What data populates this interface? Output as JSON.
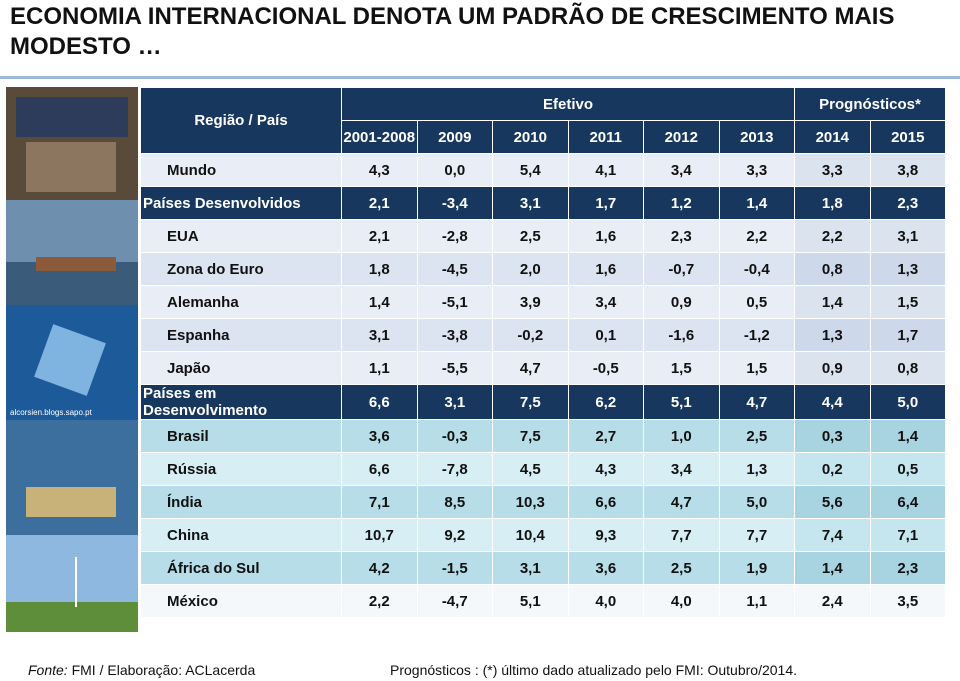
{
  "title": "ECONOMIA INTERNACIONAL DENOTA UM PADRÃO DE CRESCIMENTO MAIS MODESTO …",
  "images": {
    "watermark": "alcorsien.blogs.sapo.pt"
  },
  "table": {
    "region_header": "Região / País",
    "groups": [
      "Efetivo",
      "Prognósticos*"
    ],
    "columns": [
      "2001-2008",
      "2009",
      "2010",
      "2011",
      "2012",
      "2013",
      "2014",
      "2015"
    ],
    "rows": [
      [
        "Mundo",
        "4,3",
        "0,0",
        "5,4",
        "4,1",
        "3,4",
        "3,3",
        "3,3",
        "3,8"
      ],
      [
        "Países Desenvolvidos",
        "2,1",
        "-3,4",
        "3,1",
        "1,7",
        "1,2",
        "1,4",
        "1,8",
        "2,3"
      ],
      [
        "EUA",
        "2,1",
        "-2,8",
        "2,5",
        "1,6",
        "2,3",
        "2,2",
        "2,2",
        "3,1"
      ],
      [
        "Zona do Euro",
        "1,8",
        "-4,5",
        "2,0",
        "1,6",
        "-0,7",
        "-0,4",
        "0,8",
        "1,3"
      ],
      [
        "Alemanha",
        "1,4",
        "-5,1",
        "3,9",
        "3,4",
        "0,9",
        "0,5",
        "1,4",
        "1,5"
      ],
      [
        "Espanha",
        "3,1",
        "-3,8",
        "-0,2",
        "0,1",
        "-1,6",
        "-1,2",
        "1,3",
        "1,7"
      ],
      [
        "Japão",
        "1,1",
        "-5,5",
        "4,7",
        "-0,5",
        "1,5",
        "1,5",
        "0,9",
        "0,8"
      ],
      [
        "Países em Desenvolvimento",
        "6,6",
        "3,1",
        "7,5",
        "6,2",
        "5,1",
        "4,7",
        "4,4",
        "5,0"
      ],
      [
        "Brasil",
        "3,6",
        "-0,3",
        "7,5",
        "2,7",
        "1,0",
        "2,5",
        "0,3",
        "1,4"
      ],
      [
        "Rússia",
        "6,6",
        "-7,8",
        "4,5",
        "4,3",
        "3,4",
        "1,3",
        "0,2",
        "0,5"
      ],
      [
        "Índia",
        "7,1",
        "8,5",
        "10,3",
        "6,6",
        "4,7",
        "5,0",
        "5,6",
        "6,4"
      ],
      [
        "China",
        "10,7",
        "9,2",
        "10,4",
        "9,3",
        "7,7",
        "7,7",
        "7,4",
        "7,1"
      ],
      [
        "África do Sul",
        "4,2",
        "-1,5",
        "3,1",
        "3,6",
        "2,5",
        "1,9",
        "1,4",
        "2,3"
      ],
      [
        "México",
        "2,2",
        "-4,7",
        "5,1",
        "4,0",
        "4,0",
        "1,1",
        "2,4",
        "3,5"
      ]
    ]
  },
  "footer": {
    "source_label": "Fonte:",
    "source": " FMI / Elaboração: ACLacerda",
    "note": "Prognósticos : (*) último dado atualizado pelo FMI: Outubro/2014."
  }
}
